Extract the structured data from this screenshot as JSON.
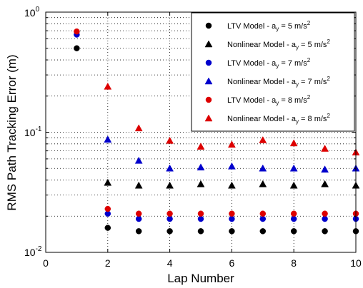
{
  "chart_data": {
    "type": "scatter",
    "xlabel": "Lap Number",
    "ylabel": "RMS Path Tracking Error (m)",
    "xlim": [
      0,
      10
    ],
    "ylim": [
      0.01,
      1
    ],
    "yscale": "log",
    "grid": true,
    "legend_position": "top-right",
    "x_ticks": [
      "0",
      "2",
      "4",
      "6",
      "8",
      "10"
    ],
    "y_tick_bases": [
      "10",
      "10",
      "10"
    ],
    "y_tick_exponents": [
      "-2",
      "-1",
      "0"
    ],
    "series": [
      {
        "name": "LTV Model - a_y = 5 m/s^2",
        "legend": {
          "pre": "LTV Model - a",
          "sub": "y",
          "mid": " = 5 m/s",
          "sup": "2"
        },
        "marker": "circle",
        "color": "#000000",
        "x": [
          1,
          2,
          3,
          4,
          5,
          6,
          7,
          8,
          9,
          10
        ],
        "y": [
          0.5,
          0.016,
          0.015,
          0.015,
          0.015,
          0.015,
          0.015,
          0.015,
          0.015,
          0.015
        ]
      },
      {
        "name": "Nonlinear Model - a_y = 5 m/s^2",
        "legend": {
          "pre": "Nonlinear Model - a",
          "sub": "y",
          "mid": " = 5 m/s",
          "sup": "2"
        },
        "marker": "triangle",
        "color": "#000000",
        "x": [
          2,
          3,
          4,
          5,
          6,
          7,
          8,
          9,
          10
        ],
        "y": [
          0.038,
          0.036,
          0.036,
          0.037,
          0.036,
          0.037,
          0.036,
          0.037,
          0.036
        ]
      },
      {
        "name": "LTV Model - a_y = 7 m/s^2",
        "legend": {
          "pre": "LTV Model - a",
          "sub": "y",
          "mid": " = 7 m/s",
          "sup": "2"
        },
        "marker": "circle",
        "color": "#0000cc",
        "x": [
          1,
          2,
          3,
          4,
          5,
          6,
          7,
          8,
          9,
          10
        ],
        "y": [
          0.65,
          0.021,
          0.019,
          0.019,
          0.019,
          0.019,
          0.019,
          0.019,
          0.019,
          0.019
        ]
      },
      {
        "name": "Nonlinear Model - a_y = 7 m/s^2",
        "legend": {
          "pre": "Nonlinear Model - a",
          "sub": "y",
          "mid": " = 7 m/s",
          "sup": "2"
        },
        "marker": "triangle",
        "color": "#0000cc",
        "x": [
          2,
          3,
          4,
          5,
          6,
          7,
          8,
          9,
          10
        ],
        "y": [
          0.087,
          0.058,
          0.05,
          0.051,
          0.052,
          0.05,
          0.05,
          0.049,
          0.05
        ]
      },
      {
        "name": "LTV Model - a_y = 8 m/s^2",
        "legend": {
          "pre": "LTV Model - a",
          "sub": "y",
          "mid": " = 8 m/s",
          "sup": "2"
        },
        "marker": "circle",
        "color": "#dd0000",
        "x": [
          1,
          2,
          3,
          4,
          5,
          6,
          7,
          8,
          9,
          10
        ],
        "y": [
          0.69,
          0.023,
          0.021,
          0.021,
          0.021,
          0.021,
          0.021,
          0.021,
          0.021,
          0.021
        ]
      },
      {
        "name": "Nonlinear Model - a_y = 8 m/s^2",
        "legend": {
          "pre": "Nonlinear Model - a",
          "sub": "y",
          "mid": " = 8 m/s",
          "sup": "2"
        },
        "marker": "triangle",
        "color": "#dd0000",
        "x": [
          2,
          3,
          4,
          5,
          6,
          7,
          8,
          9,
          10
        ],
        "y": [
          0.24,
          0.108,
          0.085,
          0.076,
          0.079,
          0.086,
          0.081,
          0.073,
          0.068
        ]
      }
    ]
  }
}
